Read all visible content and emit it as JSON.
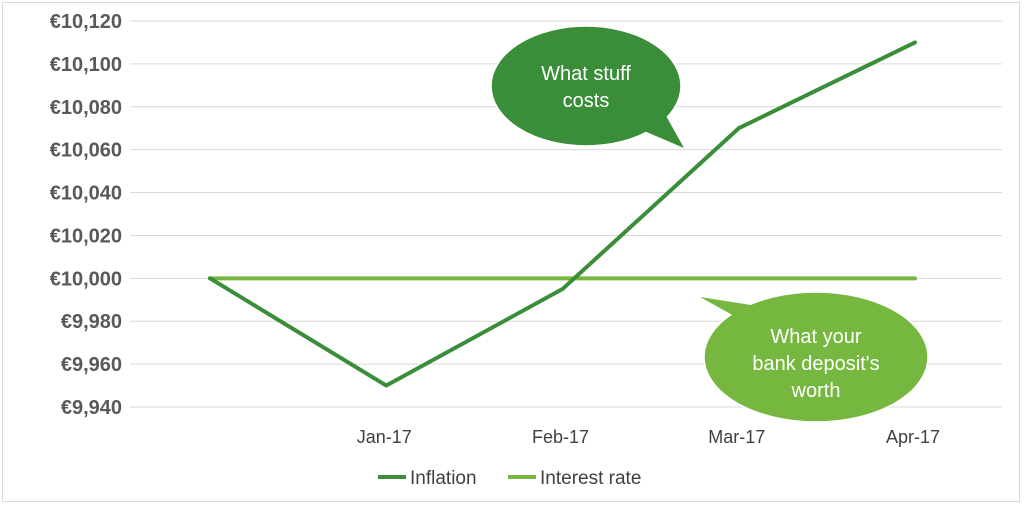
{
  "chart_data": {
    "type": "line",
    "x": [
      "",
      "Jan-17",
      "Feb-17",
      "Mar-17",
      "Apr-17"
    ],
    "series": [
      {
        "name": "Inflation",
        "color": "#3a8e3a",
        "values": [
          10000,
          9950,
          9995,
          10070,
          10110
        ]
      },
      {
        "name": "Interest rate",
        "color": "#76b83f",
        "values": [
          10000,
          10000,
          10000,
          10000,
          10000
        ]
      }
    ],
    "y_ticks": [
      "€9,940",
      "€9,960",
      "€9,980",
      "€10,000",
      "€10,020",
      "€10,040",
      "€10,060",
      "€10,080",
      "€10,100",
      "€10,120"
    ],
    "y_tick_values": [
      9940,
      9960,
      9980,
      10000,
      10020,
      10040,
      10060,
      10080,
      10100,
      10120
    ],
    "ylim": [
      9940,
      10120
    ],
    "grid": true,
    "legend": "bottom",
    "annotations": [
      {
        "lines": [
          "What stuff",
          "costs"
        ],
        "color": "#3a8e3a",
        "points_to": "Inflation"
      },
      {
        "lines": [
          "What your",
          "bank deposit's",
          "worth"
        ],
        "color": "#76b83f",
        "points_to": "Interest rate"
      }
    ]
  }
}
